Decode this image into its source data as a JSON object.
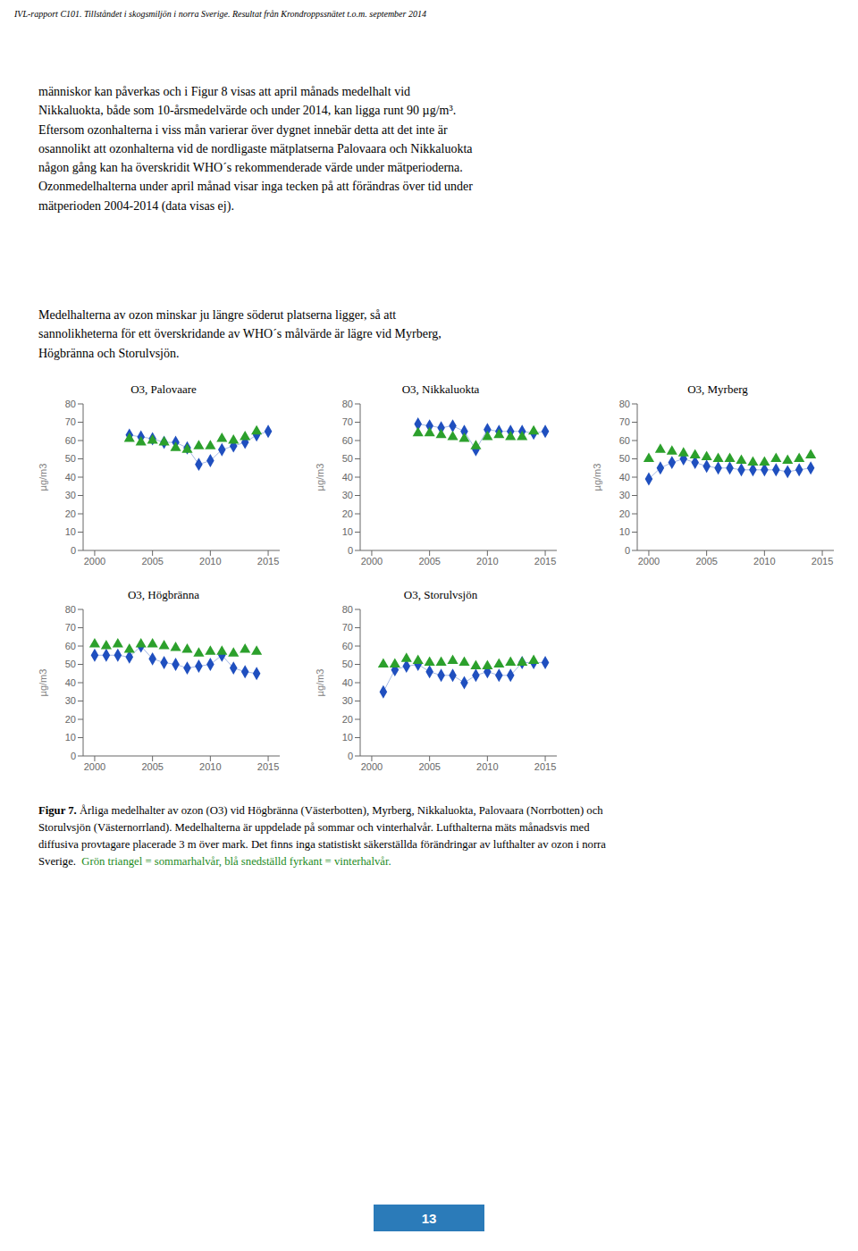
{
  "header": "IVL-rapport C101. Tillståndet i skogsmiljön i norra Sverige. Resultat från Krondroppssnätet t.o.m. september 2014",
  "paragraphs": [
    "människor kan påverkas och i Figur 8 visas att april månads medelhalt vid\nNikkaluokta, både som 10-årsmedelvärde och under 2014, kan ligga runt 90 µg/m³.\nEftersom ozonhalterna i viss mån varierar över dygnet innebär detta att det inte är\nosannolikt att ozonhalterna vid de nordligaste mätplatserna Palovaara och Nikkaluokta\nnågon gång kan ha överskridit WHO´s rekommenderade värde under mätperioderna.\nOzonmedelhalterna under april månad visar inga tecken på att förändras över tid under\nmätperioden 2004-2014 (data visas ej).",
    "Medelhalterna av ozon minskar ju längre söderut platserna ligger, så att\nsannolikheterna för ett överskridande av WHO´s målvärde är lägre vid Myrberg,\nHögbränna och Storulvsjön."
  ],
  "caption": {
    "bold": "Figur 7.",
    "text": " Årliga medelhalter av ozon (O3) vid Högbränna (Västerbotten), Myrberg, Nikkaluokta, Palovaara (Norrbotten) och\nStorulvsjön (Västernorrland). Medelhalterna är uppdelade på sommar och vinterhalvår. Lufthalterna mäts månadsvis med\ndiffusiva provtagare placerade 3 m över mark. Det finns inga statistiskt säkerställda förändringar av lufthalter av ozon i norra\nSverige.",
    "legend_text": "  Grön triangel = sommarhalvår, blå snedställd fyrkant = vinterhalvår.",
    "legend_color": "#228B22"
  },
  "page_number": {
    "text": "13",
    "color": "#2B7BB9"
  },
  "chart_data": [
    {
      "type": "scatter",
      "title": "O3, Palovaare",
      "ylabel": "µg/m3",
      "xlim": [
        1999,
        2016
      ],
      "xticks": [
        2000,
        2005,
        2010,
        2015
      ],
      "ylim": [
        0,
        80
      ],
      "yticks": [
        0,
        10,
        20,
        30,
        40,
        50,
        60,
        70,
        80
      ],
      "grid": false,
      "series": [
        {
          "color": "#1f4fbf",
          "marker": "diamond",
          "line_style": "solid",
          "x": [
            2003,
            2004,
            2005,
            2006,
            2007,
            2008,
            2009,
            2010,
            2011,
            2012,
            2013,
            2014,
            2015
          ],
          "values": [
            63,
            62,
            61,
            59,
            59,
            56,
            47,
            49,
            55,
            57,
            59,
            63,
            65
          ]
        },
        {
          "color": "#2ca02c",
          "marker": "triangle",
          "line_style": "none",
          "x": [
            2003,
            2004,
            2005,
            2006,
            2007,
            2008,
            2009,
            2010,
            2011,
            2012,
            2013,
            2014
          ],
          "values": [
            61,
            59,
            60,
            59,
            56,
            55,
            57,
            57,
            61,
            60,
            62,
            65
          ]
        }
      ]
    },
    {
      "type": "scatter",
      "title": "O3, Nikkaluokta",
      "ylabel": "µg/m3",
      "xlim": [
        1999,
        2016
      ],
      "xticks": [
        2000,
        2005,
        2010,
        2015
      ],
      "ylim": [
        0,
        80
      ],
      "yticks": [
        0,
        10,
        20,
        30,
        40,
        50,
        60,
        70,
        80
      ],
      "grid": false,
      "series": [
        {
          "color": "#1f4fbf",
          "marker": "diamond",
          "line_style": "solid",
          "x": [
            2004,
            2005,
            2006,
            2007,
            2008,
            2009,
            2010,
            2011,
            2012,
            2013,
            2014,
            2015
          ],
          "values": [
            69,
            68,
            67,
            68,
            65,
            55,
            66,
            65,
            65,
            65,
            64,
            65
          ]
        },
        {
          "color": "#2ca02c",
          "marker": "triangle",
          "line_style": "none",
          "x": [
            2004,
            2005,
            2006,
            2007,
            2008,
            2009,
            2010,
            2011,
            2012,
            2013,
            2014
          ],
          "values": [
            64,
            64,
            63,
            62,
            61,
            57,
            62,
            63,
            62,
            62,
            65
          ]
        }
      ]
    },
    {
      "type": "scatter",
      "title": "O3, Myrberg",
      "ylabel": "µg/m3",
      "xlim": [
        1999,
        2016
      ],
      "xticks": [
        2000,
        2005,
        2010,
        2015
      ],
      "ylim": [
        0,
        80
      ],
      "yticks": [
        0,
        10,
        20,
        30,
        40,
        50,
        60,
        70,
        80
      ],
      "grid": false,
      "series": [
        {
          "color": "#1f4fbf",
          "marker": "diamond",
          "line_style": "solid",
          "x": [
            2000,
            2001,
            2002,
            2003,
            2004,
            2005,
            2006,
            2007,
            2008,
            2009,
            2010,
            2011,
            2012,
            2013,
            2014
          ],
          "values": [
            39,
            45,
            48,
            50,
            48,
            46,
            45,
            45,
            44,
            44,
            44,
            44,
            43,
            44,
            45
          ]
        },
        {
          "color": "#2ca02c",
          "marker": "triangle",
          "line_style": "none",
          "x": [
            2000,
            2001,
            2002,
            2003,
            2004,
            2005,
            2006,
            2007,
            2008,
            2009,
            2010,
            2011,
            2012,
            2013,
            2014
          ],
          "values": [
            50,
            55,
            54,
            53,
            52,
            51,
            50,
            50,
            49,
            48,
            48,
            50,
            49,
            50,
            52
          ]
        }
      ]
    },
    {
      "type": "scatter",
      "title": "O3, Högbränna",
      "ylabel": "µg/m3",
      "xlim": [
        1999,
        2016
      ],
      "xticks": [
        2000,
        2005,
        2010,
        2015
      ],
      "ylim": [
        0,
        80
      ],
      "yticks": [
        0,
        10,
        20,
        30,
        40,
        50,
        60,
        70,
        80
      ],
      "grid": false,
      "series": [
        {
          "color": "#1f4fbf",
          "marker": "diamond",
          "line_style": "solid",
          "x": [
            2000,
            2001,
            2002,
            2003,
            2004,
            2005,
            2006,
            2007,
            2008,
            2009,
            2010,
            2011,
            2012,
            2013,
            2014
          ],
          "values": [
            55,
            55,
            55,
            54,
            60,
            53,
            51,
            50,
            48,
            49,
            50,
            55,
            48,
            46,
            45
          ]
        },
        {
          "color": "#2ca02c",
          "marker": "triangle",
          "line_style": "none",
          "x": [
            2000,
            2001,
            2002,
            2003,
            2004,
            2005,
            2006,
            2007,
            2008,
            2009,
            2010,
            2011,
            2012,
            2013,
            2014
          ],
          "values": [
            61,
            60,
            61,
            58,
            61,
            61,
            60,
            59,
            58,
            56,
            57,
            57,
            56,
            58,
            57
          ]
        }
      ]
    },
    {
      "type": "scatter",
      "title": "O3, Storulvsjön",
      "ylabel": "µg/m3",
      "xlim": [
        1999,
        2016
      ],
      "xticks": [
        2000,
        2005,
        2010,
        2015
      ],
      "ylim": [
        0,
        80
      ],
      "yticks": [
        0,
        10,
        20,
        30,
        40,
        50,
        60,
        70,
        80
      ],
      "grid": false,
      "series": [
        {
          "color": "#1f4fbf",
          "marker": "diamond",
          "line_style": "solid",
          "x": [
            2001,
            2002,
            2003,
            2004,
            2005,
            2006,
            2007,
            2008,
            2009,
            2010,
            2011,
            2012,
            2013,
            2014,
            2015
          ],
          "values": [
            35,
            47,
            49,
            50,
            46,
            44,
            44,
            40,
            44,
            46,
            44,
            44,
            51,
            51,
            51
          ]
        },
        {
          "color": "#2ca02c",
          "marker": "triangle",
          "line_style": "none",
          "x": [
            2001,
            2002,
            2003,
            2004,
            2005,
            2006,
            2007,
            2008,
            2009,
            2010,
            2011,
            2012,
            2013,
            2014
          ],
          "values": [
            50,
            50,
            53,
            52,
            51,
            51,
            52,
            51,
            49,
            49,
            50,
            51,
            51,
            52
          ]
        }
      ]
    }
  ]
}
